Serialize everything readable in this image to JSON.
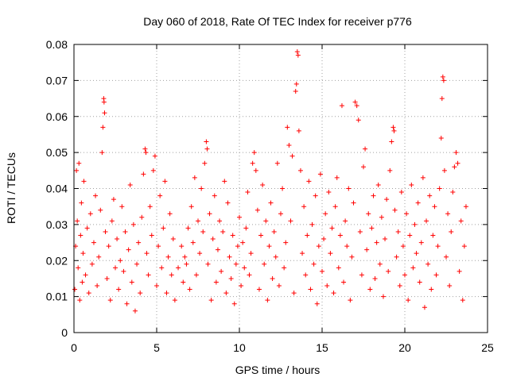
{
  "chart_data": {
    "type": "scatter",
    "title": "Day 060 of 2018, Rate Of TEC Index for receiver p776",
    "xlabel": "GPS time / hours",
    "ylabel": "ROTI / TECUs",
    "xlim": [
      0,
      25
    ],
    "ylim": [
      0,
      0.08
    ],
    "xticks": [
      0,
      5,
      10,
      15,
      20,
      25
    ],
    "xtick_labels": [
      "0",
      "5",
      "10",
      "15",
      "20",
      "25"
    ],
    "yticks": [
      0,
      0.01,
      0.02,
      0.03,
      0.04,
      0.05,
      0.06,
      0.07,
      0.08
    ],
    "ytick_labels": [
      "0",
      "0.01",
      "0.02",
      "0.03",
      "0.04",
      "0.05",
      "0.06",
      "0.07",
      "0.08"
    ],
    "grid": true,
    "marker": "+",
    "color": "#ff0000",
    "series": [
      {
        "name": "ROTI",
        "points": [
          [
            0.05,
            0.012
          ],
          [
            0.1,
            0.024
          ],
          [
            0.15,
            0.045
          ],
          [
            0.2,
            0.031
          ],
          [
            0.25,
            0.018
          ],
          [
            0.3,
            0.047
          ],
          [
            0.35,
            0.009
          ],
          [
            0.4,
            0.027
          ],
          [
            0.45,
            0.036
          ],
          [
            0.5,
            0.014
          ],
          [
            0.55,
            0.022
          ],
          [
            0.6,
            0.042
          ],
          [
            0.7,
            0.016
          ],
          [
            0.8,
            0.029
          ],
          [
            0.9,
            0.011
          ],
          [
            1.0,
            0.033
          ],
          [
            1.1,
            0.019
          ],
          [
            1.2,
            0.025
          ],
          [
            1.3,
            0.038
          ],
          [
            1.4,
            0.013
          ],
          [
            1.5,
            0.021
          ],
          [
            1.6,
            0.034
          ],
          [
            1.7,
            0.05
          ],
          [
            1.75,
            0.057
          ],
          [
            1.8,
            0.065
          ],
          [
            1.82,
            0.064
          ],
          [
            1.85,
            0.061
          ],
          [
            1.9,
            0.028
          ],
          [
            2.0,
            0.015
          ],
          [
            2.1,
            0.024
          ],
          [
            2.2,
            0.009
          ],
          [
            2.3,
            0.031
          ],
          [
            2.4,
            0.037
          ],
          [
            2.5,
            0.018
          ],
          [
            2.6,
            0.026
          ],
          [
            2.7,
            0.012
          ],
          [
            2.8,
            0.02
          ],
          [
            2.9,
            0.035
          ],
          [
            3.0,
            0.017
          ],
          [
            3.1,
            0.028
          ],
          [
            3.2,
            0.008
          ],
          [
            3.3,
            0.023
          ],
          [
            3.4,
            0.041
          ],
          [
            3.5,
            0.014
          ],
          [
            3.6,
            0.03
          ],
          [
            3.7,
            0.006
          ],
          [
            3.8,
            0.019
          ],
          [
            3.9,
            0.025
          ],
          [
            4.0,
            0.011
          ],
          [
            4.1,
            0.032
          ],
          [
            4.2,
            0.044
          ],
          [
            4.3,
            0.051
          ],
          [
            4.35,
            0.05
          ],
          [
            4.4,
            0.022
          ],
          [
            4.5,
            0.016
          ],
          [
            4.6,
            0.035
          ],
          [
            4.7,
            0.027
          ],
          [
            4.8,
            0.045
          ],
          [
            4.9,
            0.049
          ],
          [
            5.0,
            0.013
          ],
          [
            5.1,
            0.024
          ],
          [
            5.2,
            0.038
          ],
          [
            5.3,
            0.018
          ],
          [
            5.4,
            0.029
          ],
          [
            5.5,
            0.042
          ],
          [
            5.6,
            0.011
          ],
          [
            5.7,
            0.021
          ],
          [
            5.8,
            0.033
          ],
          [
            5.9,
            0.016
          ],
          [
            6.0,
            0.026
          ],
          [
            6.1,
            0.009
          ],
          [
            6.3,
            0.018
          ],
          [
            6.5,
            0.024
          ],
          [
            6.6,
            0.014
          ],
          [
            6.7,
            0.021
          ],
          [
            6.8,
            0.019
          ],
          [
            6.9,
            0.029
          ],
          [
            7.0,
            0.012
          ],
          [
            7.1,
            0.035
          ],
          [
            7.2,
            0.025
          ],
          [
            7.3,
            0.043
          ],
          [
            7.4,
            0.016
          ],
          [
            7.5,
            0.031
          ],
          [
            7.6,
            0.022
          ],
          [
            7.7,
            0.04
          ],
          [
            7.8,
            0.028
          ],
          [
            7.9,
            0.047
          ],
          [
            8.0,
            0.053
          ],
          [
            8.05,
            0.051
          ],
          [
            8.1,
            0.019
          ],
          [
            8.2,
            0.033
          ],
          [
            8.3,
            0.009
          ],
          [
            8.4,
            0.026
          ],
          [
            8.5,
            0.038
          ],
          [
            8.6,
            0.014
          ],
          [
            8.7,
            0.023
          ],
          [
            8.8,
            0.031
          ],
          [
            8.9,
            0.017
          ],
          [
            9.0,
            0.028
          ],
          [
            9.1,
            0.042
          ],
          [
            9.2,
            0.011
          ],
          [
            9.3,
            0.036
          ],
          [
            9.4,
            0.021
          ],
          [
            9.5,
            0.015
          ],
          [
            9.6,
            0.027
          ],
          [
            9.7,
            0.008
          ],
          [
            9.8,
            0.019
          ],
          [
            9.9,
            0.024
          ],
          [
            10.0,
            0.032
          ],
          [
            10.1,
            0.013
          ],
          [
            10.2,
            0.025
          ],
          [
            10.3,
            0.018
          ],
          [
            10.4,
            0.029
          ],
          [
            10.5,
            0.039
          ],
          [
            10.6,
            0.016
          ],
          [
            10.7,
            0.022
          ],
          [
            10.8,
            0.047
          ],
          [
            10.9,
            0.05
          ],
          [
            11.0,
            0.045
          ],
          [
            11.1,
            0.034
          ],
          [
            11.2,
            0.012
          ],
          [
            11.3,
            0.027
          ],
          [
            11.4,
            0.041
          ],
          [
            11.5,
            0.019
          ],
          [
            11.6,
            0.031
          ],
          [
            11.7,
            0.009
          ],
          [
            11.8,
            0.024
          ],
          [
            11.9,
            0.036
          ],
          [
            12.0,
            0.015
          ],
          [
            12.1,
            0.028
          ],
          [
            12.2,
            0.021
          ],
          [
            12.3,
            0.047
          ],
          [
            12.4,
            0.013
          ],
          [
            12.5,
            0.033
          ],
          [
            12.6,
            0.04
          ],
          [
            12.7,
            0.018
          ],
          [
            12.8,
            0.025
          ],
          [
            12.9,
            0.057
          ],
          [
            13.0,
            0.052
          ],
          [
            13.1,
            0.031
          ],
          [
            13.2,
            0.049
          ],
          [
            13.3,
            0.011
          ],
          [
            13.4,
            0.067
          ],
          [
            13.45,
            0.069
          ],
          [
            13.5,
            0.078
          ],
          [
            13.55,
            0.077
          ],
          [
            13.6,
            0.056
          ],
          [
            13.7,
            0.045
          ],
          [
            13.8,
            0.022
          ],
          [
            13.9,
            0.035
          ],
          [
            14.0,
            0.016
          ],
          [
            14.1,
            0.027
          ],
          [
            14.2,
            0.042
          ],
          [
            14.3,
            0.012
          ],
          [
            14.4,
            0.03
          ],
          [
            14.5,
            0.019
          ],
          [
            14.6,
            0.038
          ],
          [
            14.7,
            0.008
          ],
          [
            14.8,
            0.024
          ],
          [
            14.9,
            0.044
          ],
          [
            15.0,
            0.017
          ],
          [
            15.1,
            0.026
          ],
          [
            15.2,
            0.033
          ],
          [
            15.3,
            0.013
          ],
          [
            15.4,
            0.039
          ],
          [
            15.5,
            0.022
          ],
          [
            15.6,
            0.029
          ],
          [
            15.7,
            0.011
          ],
          [
            15.8,
            0.035
          ],
          [
            15.9,
            0.043
          ],
          [
            16.0,
            0.018
          ],
          [
            16.1,
            0.027
          ],
          [
            16.2,
            0.063
          ],
          [
            16.3,
            0.014
          ],
          [
            16.4,
            0.031
          ],
          [
            16.5,
            0.024
          ],
          [
            16.6,
            0.04
          ],
          [
            16.7,
            0.009
          ],
          [
            16.8,
            0.021
          ],
          [
            16.9,
            0.036
          ],
          [
            17.0,
            0.064
          ],
          [
            17.1,
            0.063
          ],
          [
            17.2,
            0.059
          ],
          [
            17.3,
            0.028
          ],
          [
            17.4,
            0.016
          ],
          [
            17.5,
            0.046
          ],
          [
            17.6,
            0.051
          ],
          [
            17.7,
            0.023
          ],
          [
            17.8,
            0.033
          ],
          [
            17.9,
            0.012
          ],
          [
            18.0,
            0.029
          ],
          [
            18.1,
            0.038
          ],
          [
            18.2,
            0.015
          ],
          [
            18.3,
            0.025
          ],
          [
            18.4,
            0.041
          ],
          [
            18.5,
            0.019
          ],
          [
            18.6,
            0.032
          ],
          [
            18.7,
            0.01
          ],
          [
            18.8,
            0.026
          ],
          [
            18.9,
            0.037
          ],
          [
            19.0,
            0.017
          ],
          [
            19.1,
            0.045
          ],
          [
            19.2,
            0.053
          ],
          [
            19.3,
            0.057
          ],
          [
            19.35,
            0.056
          ],
          [
            19.4,
            0.034
          ],
          [
            19.5,
            0.021
          ],
          [
            19.6,
            0.028
          ],
          [
            19.7,
            0.013
          ],
          [
            19.8,
            0.039
          ],
          [
            19.9,
            0.024
          ],
          [
            20.0,
            0.016
          ],
          [
            20.1,
            0.033
          ],
          [
            20.2,
            0.009
          ],
          [
            20.3,
            0.027
          ],
          [
            20.4,
            0.041
          ],
          [
            20.5,
            0.018
          ],
          [
            20.6,
            0.03
          ],
          [
            20.7,
            0.022
          ],
          [
            20.8,
            0.036
          ],
          [
            20.9,
            0.014
          ],
          [
            21.0,
            0.025
          ],
          [
            21.1,
            0.043
          ],
          [
            21.2,
            0.007
          ],
          [
            21.3,
            0.031
          ],
          [
            21.4,
            0.019
          ],
          [
            21.5,
            0.038
          ],
          [
            21.6,
            0.012
          ],
          [
            21.7,
            0.027
          ],
          [
            21.8,
            0.035
          ],
          [
            21.9,
            0.016
          ],
          [
            22.0,
            0.024
          ],
          [
            22.1,
            0.04
          ],
          [
            22.2,
            0.054
          ],
          [
            22.25,
            0.065
          ],
          [
            22.3,
            0.071
          ],
          [
            22.35,
            0.07
          ],
          [
            22.4,
            0.045
          ],
          [
            22.5,
            0.021
          ],
          [
            22.6,
            0.033
          ],
          [
            22.7,
            0.013
          ],
          [
            22.8,
            0.028
          ],
          [
            22.9,
            0.039
          ],
          [
            23.0,
            0.046
          ],
          [
            23.1,
            0.05
          ],
          [
            23.2,
            0.047
          ],
          [
            23.3,
            0.017
          ],
          [
            23.4,
            0.031
          ],
          [
            23.5,
            0.009
          ],
          [
            23.6,
            0.024
          ],
          [
            23.7,
            0.035
          ]
        ]
      }
    ]
  }
}
